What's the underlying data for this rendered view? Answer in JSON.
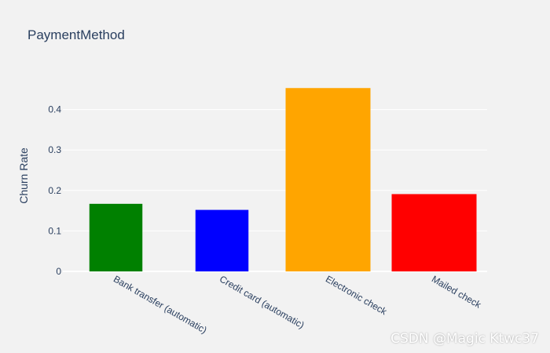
{
  "chart_data": {
    "type": "bar",
    "title": "PaymentMethod",
    "ylabel": "Churn Rate",
    "xlabel": "",
    "categories": [
      "Bank transfer (automatic)",
      "Credit card (automatic)",
      "Electronic check",
      "Mailed check"
    ],
    "values": [
      0.167,
      0.152,
      0.453,
      0.191
    ],
    "colors": [
      "#008000",
      "#0000ff",
      "#ffa500",
      "#ff0000"
    ],
    "ylim": [
      0,
      0.5
    ],
    "yticks": [
      0,
      0.1,
      0.2,
      0.3,
      0.4
    ],
    "ytick_labels": [
      "0",
      "0.1",
      "0.2",
      "0.3",
      "0.4"
    ],
    "grid": true
  },
  "watermark": "CSDN @Magic Ktwc37"
}
